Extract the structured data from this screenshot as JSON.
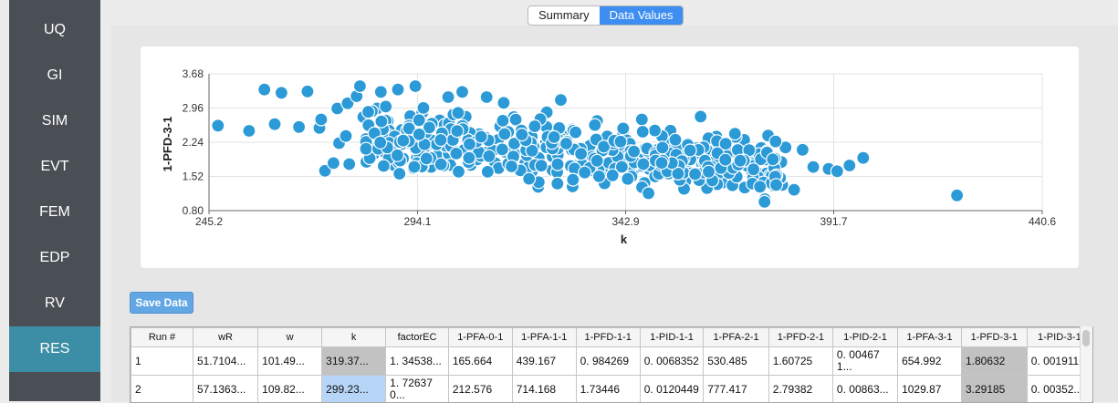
{
  "sidebar": {
    "items": [
      {
        "label": "UQ",
        "active": false
      },
      {
        "label": "GI",
        "active": false
      },
      {
        "label": "SIM",
        "active": false
      },
      {
        "label": "EVT",
        "active": false
      },
      {
        "label": "FEM",
        "active": false
      },
      {
        "label": "EDP",
        "active": false
      },
      {
        "label": "RV",
        "active": false
      },
      {
        "label": "RES",
        "active": true
      }
    ]
  },
  "tabs": [
    {
      "label": "Summary",
      "selected": false
    },
    {
      "label": "Data Values",
      "selected": true
    }
  ],
  "save_button": {
    "label": "Save Data"
  },
  "colors": {
    "accent": "#3d8ef0",
    "point": "#2b9ad6",
    "sidebar_bg": "#4a4f55",
    "active_nav": "#3b8ea5"
  },
  "chart_data": {
    "type": "scatter",
    "xlabel": "k",
    "ylabel": "1-PFD-3-1",
    "xlim": [
      245.2,
      440.6
    ],
    "ylim": [
      0.8,
      3.68
    ],
    "xticks": [
      "245.2",
      "294.1",
      "342.9",
      "391.7",
      "440.6"
    ],
    "yticks": [
      "3.68",
      "2.96",
      "2.24",
      "1.52",
      "0.80"
    ],
    "grid": true,
    "points": [
      [
        247.3,
        2.59
      ],
      [
        254.6,
        2.48
      ],
      [
        258.2,
        3.35
      ],
      [
        260.6,
        2.62
      ],
      [
        262.2,
        3.28
      ],
      [
        266.3,
        2.56
      ],
      [
        268.3,
        3.31
      ],
      [
        271.1,
        2.54
      ],
      [
        271.5,
        2.72
      ],
      [
        272.4,
        1.64
      ],
      [
        274.4,
        1.8
      ],
      [
        275.3,
        2.95
      ],
      [
        275.7,
        2.22
      ],
      [
        277.3,
        2.37
      ],
      [
        277.7,
        3.06
      ],
      [
        278.1,
        1.78
      ],
      [
        279.8,
        3.21
      ],
      [
        280.6,
        3.42
      ],
      [
        281.4,
        2.77
      ],
      [
        282.6,
        2.6
      ],
      [
        283.8,
        1.99
      ],
      [
        284.6,
        2.95
      ],
      [
        285.5,
        3.3
      ],
      [
        286.3,
        2.04
      ],
      [
        288.7,
        1.75
      ],
      [
        289.5,
        3.35
      ],
      [
        290.4,
        2.5
      ],
      [
        292.4,
        2.79
      ],
      [
        293.6,
        3.42
      ],
      [
        295.2,
        2.86
      ],
      [
        297.3,
        1.72
      ],
      [
        299.3,
        2.7
      ],
      [
        301.3,
        3.19
      ],
      [
        302.6,
        2.05
      ],
      [
        304.6,
        3.3
      ],
      [
        306.6,
        1.76
      ],
      [
        308.6,
        2.41
      ],
      [
        310.3,
        3.19
      ],
      [
        312.3,
        1.8
      ],
      [
        314.3,
        3.07
      ],
      [
        316.7,
        2.77
      ],
      [
        318.8,
        1.91
      ],
      [
        320.8,
        2.21
      ],
      [
        322.4,
        1.3
      ],
      [
        324.4,
        2.87
      ],
      [
        326.5,
        1.74
      ],
      [
        327.7,
        3.13
      ],
      [
        328.5,
        2.37
      ],
      [
        330.5,
        2.51
      ],
      [
        332.5,
        2.07
      ],
      [
        334.6,
        2.15
      ],
      [
        336.2,
        2.69
      ],
      [
        338.2,
        1.68
      ],
      [
        340.7,
        2.16
      ],
      [
        342.3,
        2.45
      ],
      [
        344.7,
        1.98
      ],
      [
        346.7,
        2.72
      ],
      [
        348.4,
        1.68
      ],
      [
        350.4,
        1.95
      ],
      [
        352.4,
        2.27
      ],
      [
        354.8,
        1.65
      ],
      [
        356.9,
        1.42
      ],
      [
        358.5,
        2.05
      ],
      [
        360.5,
        2.78
      ],
      [
        362.5,
        1.6
      ],
      [
        364.2,
        2.36
      ],
      [
        366.2,
        1.84
      ],
      [
        368.2,
        1.58
      ],
      [
        370.7,
        2.29
      ],
      [
        372.7,
        1.55
      ],
      [
        374.7,
        2.12
      ],
      [
        376.3,
        2.38
      ],
      [
        378.8,
        1.78
      ],
      [
        380.4,
        2.13
      ],
      [
        382.4,
        1.24
      ],
      [
        384.4,
        2.08
      ],
      [
        386.9,
        1.72
      ],
      [
        390.5,
        1.68
      ],
      [
        392.5,
        1.63
      ],
      [
        395.4,
        1.75
      ],
      [
        398.6,
        1.91
      ],
      [
        420.6,
        1.12
      ]
    ]
  },
  "table": {
    "columns": [
      "Run #",
      "wR",
      "w",
      "k",
      "factorEC",
      "1-PFA-0-1",
      "1-PFA-1-1",
      "1-PFD-1-1",
      "1-PID-1-1",
      "1-PFA-2-1",
      "1-PFD-2-1",
      "1-PID-2-1",
      "1-PFA-3-1",
      "1-PFD-3-1",
      "1-PID-3-1"
    ],
    "rows": [
      [
        "1",
        "51.7104...",
        "101.49...",
        "319.37...",
        "1. 34538...",
        "165.664",
        "439.167",
        "0. 984269",
        "0. 0068352",
        "530.485",
        "1.60725",
        "0. 004671...",
        "654.992",
        "1.80632",
        "0. 0019116"
      ],
      [
        "2",
        "57.1363...",
        "109.82...",
        "299.23...",
        "1. 726370...",
        "212.576",
        "714.168",
        "1.73446",
        "0. 0120449",
        "777.417",
        "2.79382",
        "0. 00863...",
        "1029.87",
        "3.29185",
        "0. 00352..."
      ]
    ]
  }
}
